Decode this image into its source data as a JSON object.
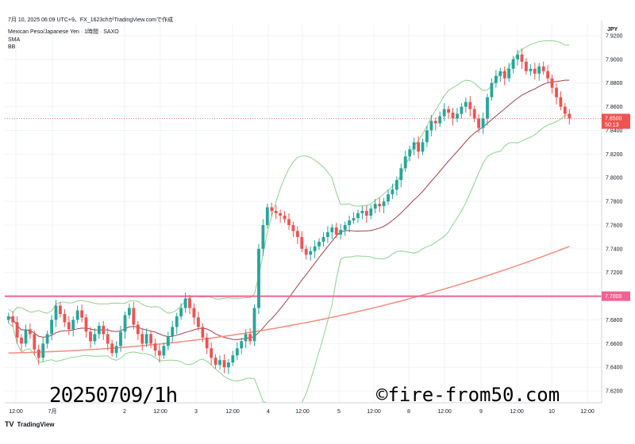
{
  "header": {
    "snapshot": "7月 10, 2025 06:09 UTC+9、FX_1623chがTradingView.comで作成"
  },
  "legend": {
    "symbol": "Mexican Peso/Japanese Yen · 1時間 · SAXO",
    "indicator_1": "SMA",
    "indicator_2": "BB"
  },
  "currency": "JPY",
  "watermark": {
    "left": "20250709/1h",
    "right": "©fire-from50.com"
  },
  "footer": {
    "logo": "TV",
    "brand": "TradingView"
  },
  "colors": {
    "up": "#26a69a",
    "down": "#ef5350",
    "sma": "#f48c7e",
    "bb_band": "#8fd18f",
    "bb_basis": "#a33f4a",
    "hline": "#f06292",
    "price_tag": "#ef5350"
  },
  "chart_data": {
    "type": "candlestick",
    "ylim": [
      7.61,
      7.93
    ],
    "y_ticks": [
      "7.9200",
      "7.9000",
      "7.8800",
      "7.8600",
      "7.8400",
      "7.8200",
      "7.8000",
      "7.7800",
      "7.7600",
      "7.7400",
      "7.7200",
      "7.7000",
      "7.6800",
      "7.6600",
      "7.6400",
      "7.6200"
    ],
    "x_ticks": [
      "12:00",
      "7月",
      "2",
      "12:00",
      "3",
      "12:00",
      "4",
      "12:00",
      "5",
      "12:00",
      "8",
      "12:00",
      "9",
      "12:00",
      "10",
      "12:00"
    ],
    "horizontal_line": {
      "value": 7.7,
      "label": "7.7000"
    },
    "current_price": {
      "value": 7.85,
      "label": "7.8500",
      "countdown": "50:13"
    },
    "close": [
      7.683,
      7.678,
      7.665,
      7.66,
      7.672,
      7.668,
      7.655,
      7.648,
      7.66,
      7.668,
      7.68,
      7.692,
      7.685,
      7.678,
      7.672,
      7.68,
      7.688,
      7.682,
      7.67,
      7.662,
      7.668,
      7.675,
      7.668,
      7.66,
      7.652,
      7.658,
      7.67,
      7.684,
      7.69,
      7.676,
      7.668,
      7.66,
      7.668,
      7.66,
      7.654,
      7.65,
      7.658,
      7.666,
      7.674,
      7.683,
      7.69,
      7.698,
      7.69,
      7.682,
      7.674,
      7.665,
      7.656,
      7.648,
      7.642,
      7.646,
      7.64,
      7.644,
      7.65,
      7.656,
      7.662,
      7.668,
      7.662,
      7.69,
      7.74,
      7.76,
      7.775,
      7.772,
      7.77,
      7.768,
      7.765,
      7.76,
      7.755,
      7.75,
      7.74,
      7.735,
      7.738,
      7.742,
      7.746,
      7.75,
      7.754,
      7.758,
      7.752,
      7.756,
      7.76,
      7.764,
      7.766,
      7.77,
      7.772,
      7.768,
      7.774,
      7.778,
      7.776,
      7.78,
      7.786,
      7.79,
      7.798,
      7.808,
      7.818,
      7.824,
      7.83,
      7.822,
      7.83,
      7.84,
      7.848,
      7.846,
      7.852,
      7.858,
      7.855,
      7.85,
      7.854,
      7.86,
      7.864,
      7.858,
      7.85,
      7.842,
      7.85,
      7.868,
      7.88,
      7.886,
      7.89,
      7.884,
      7.892,
      7.9,
      7.904,
      7.898,
      7.89,
      7.892,
      7.888,
      7.894,
      7.89,
      7.884,
      7.876,
      7.868,
      7.86,
      7.854,
      7.85
    ]
  }
}
